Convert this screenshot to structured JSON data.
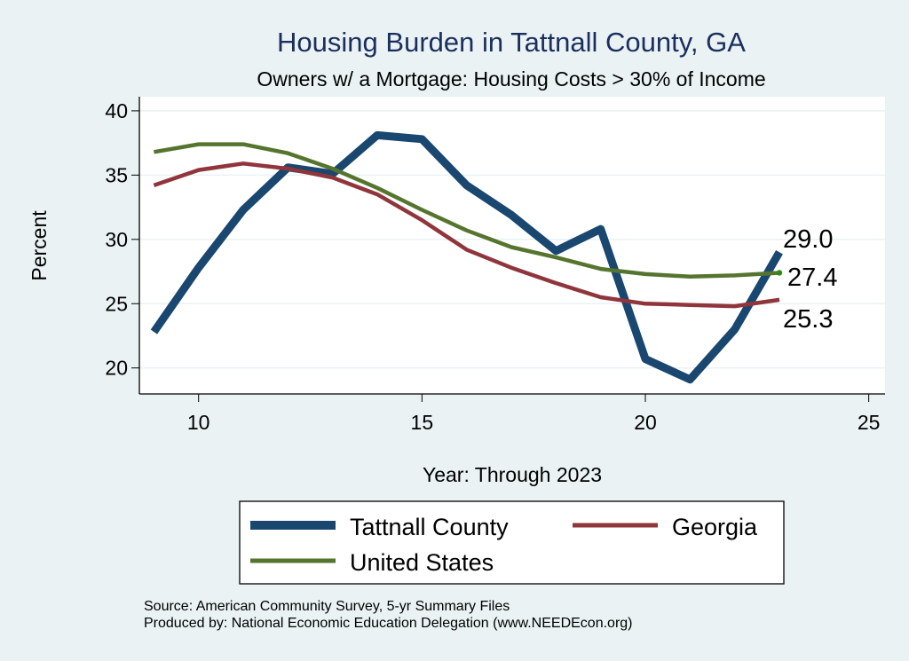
{
  "chart_data": {
    "type": "line",
    "title": "Housing Burden in Tattnall County, GA",
    "subtitle": "Owners w/ a Mortgage: Housing Costs > 30% of Income",
    "xlabel": "Year: Through 2023",
    "ylabel": "Percent",
    "xlim": [
      8.7,
      25.3
    ],
    "ylim": [
      18,
      41.2
    ],
    "xticks": [
      10,
      15,
      20,
      25
    ],
    "yticks": [
      20,
      25,
      30,
      35,
      40
    ],
    "grid": "horizontal",
    "x": [
      9,
      10,
      11,
      12,
      13,
      14,
      15,
      16,
      17,
      18,
      19,
      20,
      21,
      22,
      23
    ],
    "series": [
      {
        "name": "Tattnall County",
        "color": "#1a476f",
        "values": [
          22.8,
          27.8,
          32.3,
          35.6,
          35.1,
          38.1,
          37.8,
          34.2,
          31.9,
          29.1,
          30.8,
          20.7,
          19.1,
          23.0,
          29.0
        ],
        "end_label": "29.0"
      },
      {
        "name": "Georgia",
        "color": "#90353b",
        "values": [
          34.2,
          35.4,
          35.9,
          35.5,
          34.8,
          33.5,
          31.5,
          29.2,
          27.8,
          26.6,
          25.5,
          25.0,
          24.9,
          24.8,
          25.3
        ],
        "end_label": "25.3"
      },
      {
        "name": "United States",
        "color": "#55752f",
        "values": [
          36.8,
          37.4,
          37.4,
          36.7,
          35.5,
          34.0,
          32.3,
          30.7,
          29.4,
          28.6,
          27.7,
          27.3,
          27.1,
          27.2,
          27.4
        ],
        "end_label": "27.4"
      }
    ],
    "legend": {
      "placement": "bottom",
      "entries": [
        "Tattnall County",
        "Georgia",
        "United States"
      ]
    },
    "notes": [
      "Source: American Community Survey, 5-yr Summary Files",
      "Produced by: National Economic Education Delegation (www.NEEDEcon.org)"
    ]
  }
}
